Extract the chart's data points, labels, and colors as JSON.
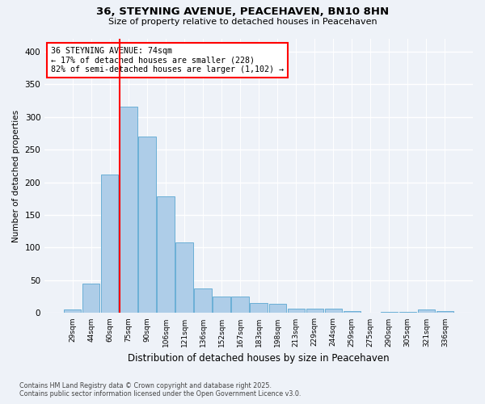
{
  "title1": "36, STEYNING AVENUE, PEACEHAVEN, BN10 8HN",
  "title2": "Size of property relative to detached houses in Peacehaven",
  "xlabel": "Distribution of detached houses by size in Peacehaven",
  "ylabel": "Number of detached properties",
  "categories": [
    "29sqm",
    "44sqm",
    "60sqm",
    "75sqm",
    "90sqm",
    "106sqm",
    "121sqm",
    "136sqm",
    "152sqm",
    "167sqm",
    "183sqm",
    "198sqm",
    "213sqm",
    "229sqm",
    "244sqm",
    "259sqm",
    "275sqm",
    "290sqm",
    "305sqm",
    "321sqm",
    "336sqm"
  ],
  "values": [
    5,
    45,
    212,
    315,
    270,
    178,
    108,
    38,
    25,
    25,
    15,
    14,
    7,
    7,
    7,
    3,
    1,
    2,
    2,
    5,
    3
  ],
  "bar_color": "#aecde8",
  "bar_edgecolor": "#6aafd6",
  "vline_x_idx": 3,
  "vline_color": "red",
  "annotation_text": "36 STEYNING AVENUE: 74sqm\n← 17% of detached houses are smaller (228)\n82% of semi-detached houses are larger (1,102) →",
  "annotation_box_edgecolor": "red",
  "annotation_box_facecolor": "white",
  "ylim": [
    0,
    420
  ],
  "yticks": [
    0,
    50,
    100,
    150,
    200,
    250,
    300,
    350,
    400
  ],
  "footer1": "Contains HM Land Registry data © Crown copyright and database right 2025.",
  "footer2": "Contains public sector information licensed under the Open Government Licence v3.0.",
  "bg_color": "#eef2f8",
  "plot_bg_color": "#eef2f8",
  "grid_color": "#ffffff"
}
